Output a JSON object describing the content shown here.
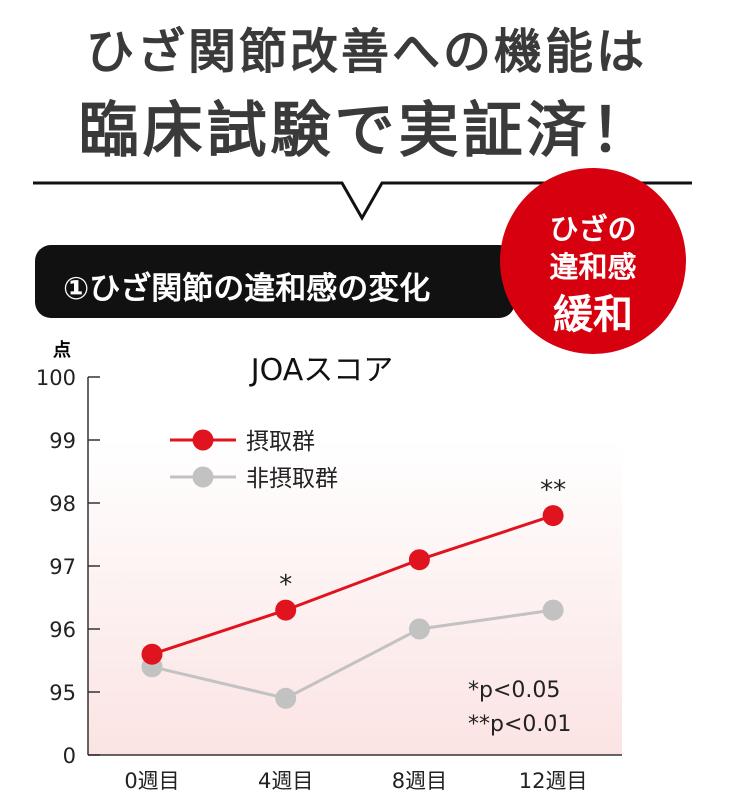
{
  "header": {
    "line1": "ひざ関節改善への機能は",
    "line2": "臨床試験で実証済！"
  },
  "banner": {
    "label": "①ひざ関節の違和感の変化"
  },
  "badge": {
    "line1": "ひざの",
    "line2": "違和感",
    "line3": "緩和"
  },
  "colors": {
    "accent": "#d7000f",
    "series1": "#e0141e",
    "series2": "#c2c2c2"
  },
  "chart_data": {
    "type": "line",
    "title": "JOAスコア",
    "ylabel": "点",
    "categories": [
      "0週目",
      "4週目",
      "8週目",
      "12週目"
    ],
    "yticks": [
      "100",
      "99",
      "98",
      "97",
      "96",
      "95",
      "0"
    ],
    "y_axis_break": "0 to 95",
    "ylim": [
      0,
      100
    ],
    "series": [
      {
        "name": "摂取群",
        "values": [
          95.6,
          96.3,
          97.1,
          97.8
        ],
        "color": "#e0141e",
        "marks": [
          "",
          "*",
          "",
          "**"
        ]
      },
      {
        "name": "非摂取群",
        "values": [
          95.4,
          94.9,
          96.0,
          96.3
        ],
        "color": "#c2c2c2"
      }
    ],
    "legend": "top-left",
    "notes": [
      "*p<0.05",
      "**p<0.01"
    ]
  }
}
